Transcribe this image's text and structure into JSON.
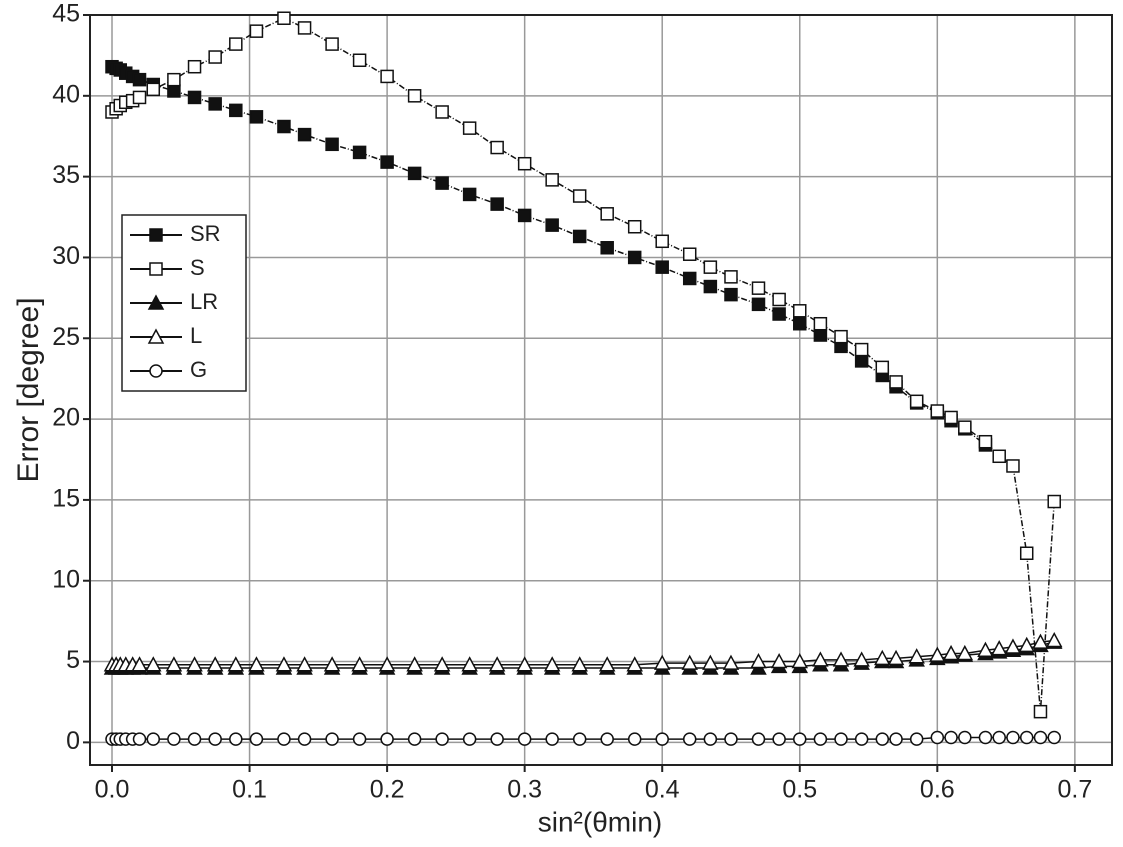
{
  "chart_data": {
    "type": "line",
    "x_label": "sin²(θmin)",
    "y_label": "Error [degree]",
    "x": [
      0,
      0.003,
      0.006,
      0.01,
      0.015,
      0.02,
      0.03,
      0.045,
      0.06,
      0.075,
      0.09,
      0.105,
      0.125,
      0.14,
      0.16,
      0.18,
      0.2,
      0.22,
      0.24,
      0.26,
      0.28,
      0.3,
      0.32,
      0.34,
      0.36,
      0.38,
      0.4,
      0.42,
      0.435,
      0.45,
      0.47,
      0.485,
      0.5,
      0.515,
      0.53,
      0.545,
      0.56,
      0.57,
      0.585,
      0.6,
      0.61,
      0.62,
      0.635,
      0.645,
      0.655,
      0.665,
      0.675,
      0.685
    ],
    "series": [
      {
        "name": "SR",
        "color": "#111111",
        "marker": "square",
        "filled": true,
        "values": [
          41.8,
          41.7,
          41.6,
          41.4,
          41.2,
          41,
          40.7,
          40.3,
          39.9,
          39.5,
          39.1,
          38.7,
          38.1,
          37.6,
          37,
          36.5,
          35.9,
          35.2,
          34.6,
          33.9,
          33.3,
          32.6,
          32,
          31.3,
          30.6,
          30,
          29.4,
          28.7,
          28.2,
          27.7,
          27.1,
          26.5,
          25.9,
          25.2,
          24.5,
          23.6,
          22.7,
          22,
          21,
          20.4,
          19.9,
          19.4,
          18.4,
          null,
          null,
          null,
          null,
          null
        ]
      },
      {
        "name": "S",
        "color": "#111111",
        "marker": "square",
        "filled": false,
        "values": [
          39,
          39.2,
          39.4,
          39.6,
          39.7,
          39.9,
          40.4,
          41,
          41.8,
          42.4,
          43.2,
          44,
          44.8,
          44.2,
          43.2,
          42.2,
          41.2,
          40,
          39,
          38,
          36.8,
          35.8,
          34.8,
          33.8,
          32.7,
          31.9,
          31,
          30.2,
          29.4,
          28.8,
          28.1,
          27.4,
          26.7,
          25.9,
          25.1,
          24.3,
          23.2,
          22.3,
          21.1,
          20.5,
          20.1,
          19.5,
          18.6,
          17.7,
          17.1,
          11.7,
          1.9,
          14.9
        ]
      },
      {
        "name": "LR",
        "color": "#111111",
        "marker": "triangle",
        "filled": true,
        "values": [
          4.6,
          4.6,
          4.6,
          4.6,
          4.6,
          4.6,
          4.6,
          4.6,
          4.6,
          4.6,
          4.6,
          4.6,
          4.6,
          4.6,
          4.6,
          4.6,
          4.6,
          4.6,
          4.6,
          4.6,
          4.6,
          4.6,
          4.6,
          4.6,
          4.6,
          4.6,
          4.6,
          4.6,
          4.6,
          4.6,
          4.6,
          4.7,
          4.7,
          4.8,
          4.8,
          4.9,
          5,
          5,
          5.1,
          5.2,
          5.3,
          5.4,
          5.5,
          5.6,
          5.7,
          5.8,
          6,
          6.2
        ]
      },
      {
        "name": "L",
        "color": "#111111",
        "marker": "triangle",
        "filled": false,
        "values": [
          4.8,
          4.8,
          4.8,
          4.8,
          4.8,
          4.8,
          4.8,
          4.8,
          4.8,
          4.8,
          4.8,
          4.8,
          4.8,
          4.8,
          4.8,
          4.8,
          4.8,
          4.8,
          4.8,
          4.8,
          4.8,
          4.8,
          4.8,
          4.8,
          4.8,
          4.8,
          4.9,
          4.9,
          4.9,
          4.9,
          5,
          5,
          5,
          5.1,
          5.1,
          5.1,
          5.2,
          5.2,
          5.3,
          5.4,
          5.5,
          5.5,
          5.7,
          5.8,
          5.9,
          6,
          6.2,
          6.3
        ]
      },
      {
        "name": "G",
        "color": "#111111",
        "marker": "circle",
        "filled": false,
        "values": [
          0.2,
          0.2,
          0.2,
          0.2,
          0.2,
          0.2,
          0.2,
          0.2,
          0.2,
          0.2,
          0.2,
          0.2,
          0.2,
          0.2,
          0.2,
          0.2,
          0.2,
          0.2,
          0.2,
          0.2,
          0.2,
          0.2,
          0.2,
          0.2,
          0.2,
          0.2,
          0.2,
          0.2,
          0.2,
          0.2,
          0.2,
          0.2,
          0.2,
          0.2,
          0.2,
          0.2,
          0.2,
          0.2,
          0.2,
          0.3,
          0.3,
          0.3,
          0.3,
          0.3,
          0.3,
          0.3,
          0.3,
          0.3
        ]
      }
    ],
    "xlim": [
      -0.016,
      0.727
    ],
    "ylim": [
      -1.4,
      45
    ],
    "xticks": [
      {
        "value": 0,
        "label": "0.0"
      },
      0.1,
      0.2,
      0.3,
      0.4,
      0.5,
      0.6,
      0.7
    ],
    "yticks": [
      0,
      5,
      10,
      15,
      20,
      25,
      30,
      35,
      40,
      45
    ],
    "grid": true,
    "legend": "upper left"
  }
}
